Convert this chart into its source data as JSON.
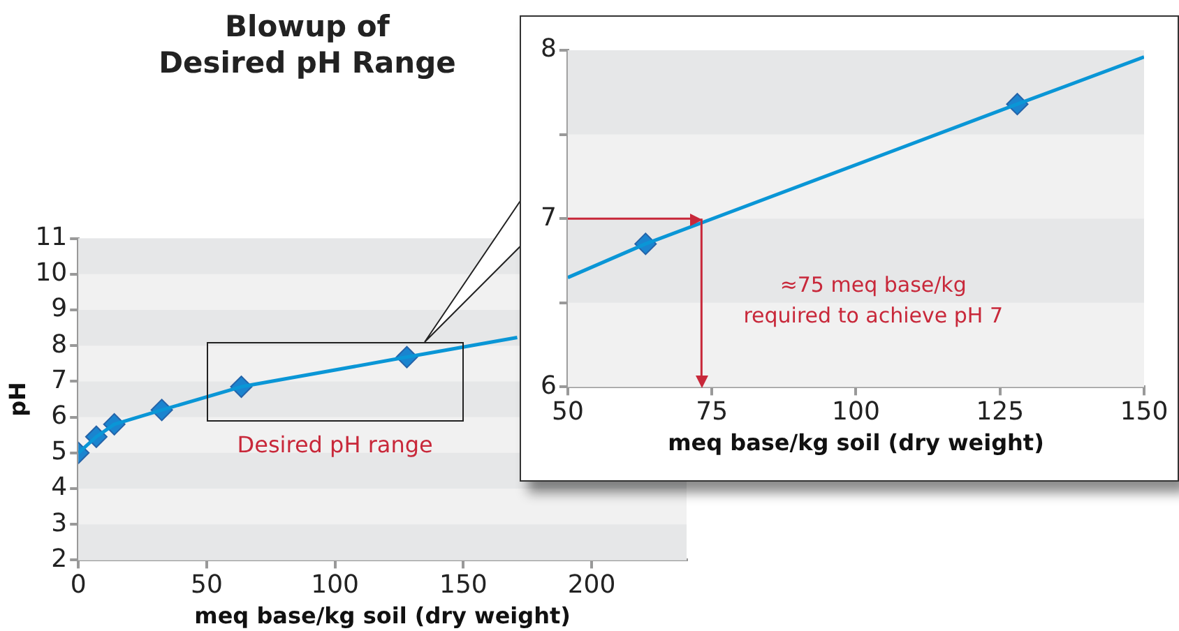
{
  "chart_data": [
    {
      "type": "line",
      "title": "Blowup of\nDesired pH Range",
      "xlabel": "meq base/kg soil (dry weight)",
      "ylabel": "pH",
      "xlim": [
        0,
        237
      ],
      "xticks": [
        0,
        50,
        100,
        150,
        200
      ],
      "ylim": [
        2,
        11
      ],
      "yticks": [
        2,
        3,
        4,
        5,
        6,
        7,
        8,
        9,
        10,
        11
      ],
      "legend": false,
      "series": [
        {
          "type": "line",
          "color": "#0a96d6",
          "marker": "none",
          "x": [
            0,
            7,
            14,
            32.5,
            63.5,
            128,
            171
          ],
          "values": [
            5,
            5.45,
            5.8,
            6.2,
            6.85,
            7.68,
            8.23
          ]
        },
        {
          "type": "scatter",
          "color": "#1a84cf",
          "marker": "diamond",
          "x": [
            0,
            7,
            14,
            32.5,
            63.5,
            128
          ],
          "values": [
            5,
            5.45,
            5.8,
            6.2,
            6.85,
            7.68
          ]
        }
      ],
      "bands": [
        {
          "axis": "y",
          "from": 10,
          "to": 11,
          "color": "#e6e7e8"
        },
        {
          "axis": "y",
          "from": 8,
          "to": 9,
          "color": "#e6e7e8"
        },
        {
          "axis": "y",
          "from": 6,
          "to": 7,
          "color": "#e6e7e8"
        },
        {
          "axis": "y",
          "from": 4,
          "to": 5,
          "color": "#e6e7e8"
        },
        {
          "axis": "y",
          "from": 2,
          "to": 3,
          "color": "#e6e7e8"
        }
      ],
      "annotations": [
        "Desired pH range"
      ]
    },
    {
      "type": "line",
      "xlabel": "meq base/kg soil (dry weight)",
      "xlim": [
        50,
        150
      ],
      "xticks": [
        50,
        75,
        100,
        125,
        150
      ],
      "ylim": [
        6,
        8
      ],
      "yticks": [
        6,
        {
          "value": 6.5,
          "label": null
        },
        7,
        {
          "value": 7.5,
          "label": null
        },
        8
      ],
      "legend": false,
      "series": [
        {
          "type": "line",
          "color": "#0a96d6",
          "marker": "none",
          "x": [
            50,
            63.5,
            128,
            150
          ],
          "values": [
            6.65,
            6.85,
            7.68,
            7.96
          ]
        },
        {
          "type": "scatter",
          "color": "#1a84cf",
          "marker": "diamond",
          "x": [
            63.5,
            128
          ],
          "values": [
            6.85,
            7.68
          ]
        }
      ],
      "bands": [
        {
          "axis": "y",
          "from": 7.5,
          "to": 8,
          "color": "#e6e7e8"
        },
        {
          "axis": "y",
          "from": 6.5,
          "to": 7,
          "color": "#e6e7e8"
        }
      ],
      "ref_lines": [
        {
          "axis": "y",
          "value": 7,
          "color": "#c8283a"
        },
        {
          "axis": "x",
          "value": 73.2,
          "color": "#c8283a"
        }
      ],
      "annotations": [
        "≈75 meq base/kg\nrequired to achieve pH 7"
      ]
    }
  ]
}
